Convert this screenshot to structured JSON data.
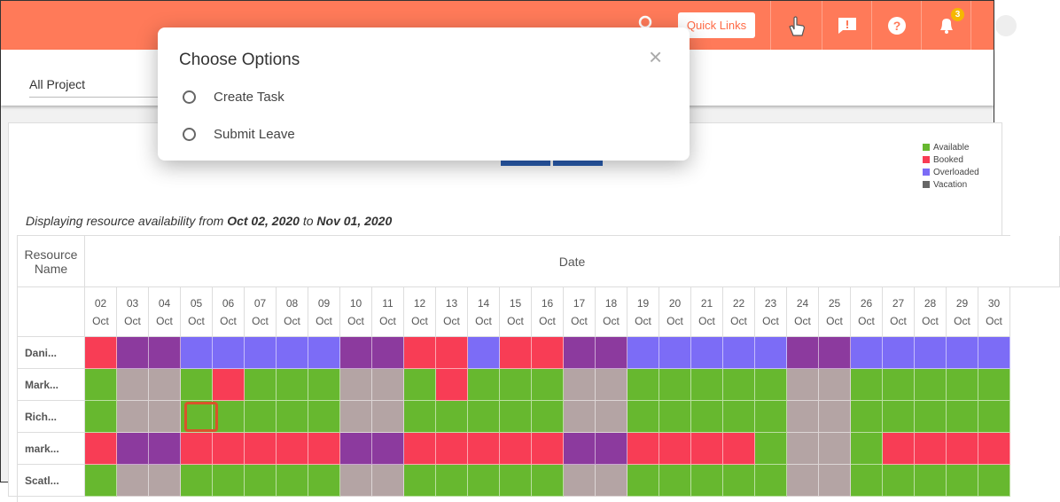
{
  "header": {
    "quick_links": "Quick Links",
    "notification_count": "3"
  },
  "toolbar": {
    "project_select": "All Project"
  },
  "dialog": {
    "title": "Choose Options",
    "close": "×",
    "options": [
      "Create Task",
      "Submit Leave"
    ]
  },
  "legend": [
    {
      "label": "Available",
      "color": "#67b82f"
    },
    {
      "label": "Booked",
      "color": "#f83d55"
    },
    {
      "label": "Overloaded",
      "color": "#7c6cf6"
    },
    {
      "label": "Vacation",
      "color": "#666666"
    }
  ],
  "range_text": {
    "prefix": "Displaying resource availability from ",
    "start": "Oct 02, 2020",
    "middle": " to ",
    "end": "Nov 01, 2020"
  },
  "table": {
    "name_header": "Resource Name",
    "date_header": "Date",
    "dates": [
      {
        "day": "02",
        "month": "Oct"
      },
      {
        "day": "03",
        "month": "Oct"
      },
      {
        "day": "04",
        "month": "Oct"
      },
      {
        "day": "05",
        "month": "Oct"
      },
      {
        "day": "06",
        "month": "Oct"
      },
      {
        "day": "07",
        "month": "Oct"
      },
      {
        "day": "08",
        "month": "Oct"
      },
      {
        "day": "09",
        "month": "Oct"
      },
      {
        "day": "10",
        "month": "Oct"
      },
      {
        "day": "11",
        "month": "Oct"
      },
      {
        "day": "12",
        "month": "Oct"
      },
      {
        "day": "13",
        "month": "Oct"
      },
      {
        "day": "14",
        "month": "Oct"
      },
      {
        "day": "15",
        "month": "Oct"
      },
      {
        "day": "16",
        "month": "Oct"
      },
      {
        "day": "17",
        "month": "Oct"
      },
      {
        "day": "18",
        "month": "Oct"
      },
      {
        "day": "19",
        "month": "Oct"
      },
      {
        "day": "20",
        "month": "Oct"
      },
      {
        "day": "21",
        "month": "Oct"
      },
      {
        "day": "22",
        "month": "Oct"
      },
      {
        "day": "23",
        "month": "Oct"
      },
      {
        "day": "24",
        "month": "Oct"
      },
      {
        "day": "25",
        "month": "Oct"
      },
      {
        "day": "26",
        "month": "Oct"
      },
      {
        "day": "27",
        "month": "Oct"
      },
      {
        "day": "28",
        "month": "Oct"
      },
      {
        "day": "29",
        "month": "Oct"
      },
      {
        "day": "30",
        "month": "Oct"
      }
    ],
    "rows": [
      {
        "name": "Dani...",
        "cells": [
          "#f83d55",
          "#8c3a9e",
          "#8c3a9e",
          "#7c6cf6",
          "#7c6cf6",
          "#7c6cf6",
          "#7c6cf6",
          "#7c6cf6",
          "#8c3a9e",
          "#8c3a9e",
          "#f83d55",
          "#f83d55",
          "#7c6cf6",
          "#f83d55",
          "#f83d55",
          "#8c3a9e",
          "#8c3a9e",
          "#7c6cf6",
          "#7c6cf6",
          "#7c6cf6",
          "#7c6cf6",
          "#7c6cf6",
          "#8c3a9e",
          "#8c3a9e",
          "#7c6cf6",
          "#7c6cf6",
          "#7c6cf6",
          "#7c6cf6",
          "#7c6cf6"
        ]
      },
      {
        "name": "Mark...",
        "cells": [
          "#67b82f",
          "#b4a4a4",
          "#b4a4a4",
          "#67b82f",
          "#f83d55",
          "#67b82f",
          "#67b82f",
          "#67b82f",
          "#b4a4a4",
          "#b4a4a4",
          "#67b82f",
          "#f83d55",
          "#67b82f",
          "#67b82f",
          "#67b82f",
          "#b4a4a4",
          "#b4a4a4",
          "#67b82f",
          "#67b82f",
          "#67b82f",
          "#67b82f",
          "#67b82f",
          "#b4a4a4",
          "#b4a4a4",
          "#67b82f",
          "#67b82f",
          "#67b82f",
          "#67b82f",
          "#67b82f"
        ]
      },
      {
        "name": "Rich...",
        "cells": [
          "#67b82f",
          "#b4a4a4",
          "#b4a4a4",
          "#67b82f",
          "#67b82f",
          "#67b82f",
          "#67b82f",
          "#67b82f",
          "#b4a4a4",
          "#b4a4a4",
          "#67b82f",
          "#67b82f",
          "#67b82f",
          "#67b82f",
          "#67b82f",
          "#b4a4a4",
          "#b4a4a4",
          "#67b82f",
          "#67b82f",
          "#67b82f",
          "#67b82f",
          "#67b82f",
          "#b4a4a4",
          "#b4a4a4",
          "#67b82f",
          "#67b82f",
          "#67b82f",
          "#67b82f",
          "#67b82f"
        ]
      },
      {
        "name": "mark...",
        "cells": [
          "#f83d55",
          "#8c3a9e",
          "#8c3a9e",
          "#f83d55",
          "#f83d55",
          "#f83d55",
          "#f83d55",
          "#f83d55",
          "#8c3a9e",
          "#8c3a9e",
          "#f83d55",
          "#f83d55",
          "#f83d55",
          "#f83d55",
          "#f83d55",
          "#8c3a9e",
          "#8c3a9e",
          "#f83d55",
          "#f83d55",
          "#f83d55",
          "#f83d55",
          "#67b82f",
          "#b4a4a4",
          "#b4a4a4",
          "#67b82f",
          "#f83d55",
          "#f83d55",
          "#f83d55",
          "#f83d55"
        ]
      },
      {
        "name": "Scatl...",
        "cells": [
          "#67b82f",
          "#b4a4a4",
          "#b4a4a4",
          "#67b82f",
          "#67b82f",
          "#67b82f",
          "#67b82f",
          "#67b82f",
          "#b4a4a4",
          "#b4a4a4",
          "#67b82f",
          "#67b82f",
          "#67b82f",
          "#67b82f",
          "#67b82f",
          "#b4a4a4",
          "#b4a4a4",
          "#67b82f",
          "#67b82f",
          "#67b82f",
          "#67b82f",
          "#67b82f",
          "#b4a4a4",
          "#b4a4a4",
          "#67b82f",
          "#67b82f",
          "#67b82f",
          "#67b82f",
          "#67b82f"
        ]
      }
    ]
  }
}
